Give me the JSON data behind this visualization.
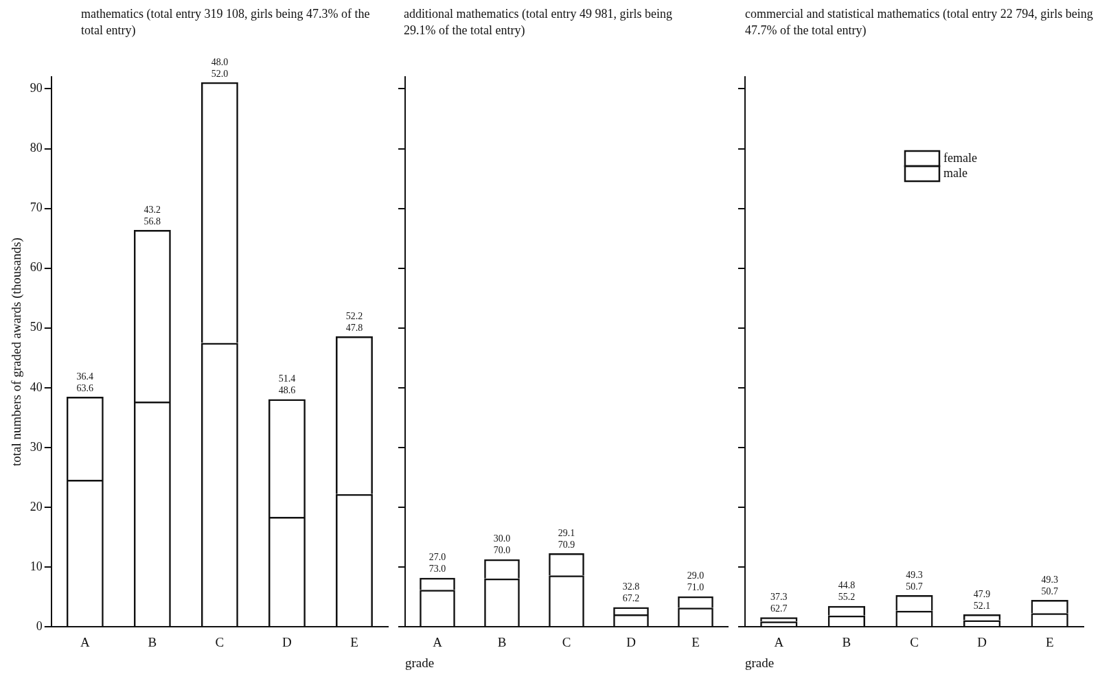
{
  "chart_data": [
    {
      "type": "bar",
      "title": "mathematics (total entry 319 108, girls being 47.3% of the total entry)",
      "ylabel": "total numbers of graded awards (thousands)",
      "categories": [
        "A",
        "B",
        "C",
        "D",
        "E"
      ],
      "stacked": true,
      "ylim": [
        0,
        92
      ],
      "yticks": [
        0,
        10,
        20,
        30,
        40,
        50,
        60,
        70,
        80,
        90
      ],
      "series": [
        {
          "color": "#111111",
          "values": [
            24.6,
            37.7,
            47.5,
            18.4,
            22.2
          ]
        },
        {
          "color": "#111111",
          "values": [
            13.9,
            28.7,
            43.6,
            19.7,
            26.4
          ]
        }
      ],
      "annotations": [
        {
          "text": "36.4",
          "x": "A",
          "y": 38.5
        },
        {
          "text": "63.6",
          "x": "A",
          "y": 38.5
        },
        {
          "text": "43.2",
          "x": "B",
          "y": 66.4
        },
        {
          "text": "56.8",
          "x": "B",
          "y": 66.4
        },
        {
          "text": "48.0",
          "x": "C",
          "y": 91.1
        },
        {
          "text": "52.0",
          "x": "C",
          "y": 91.1
        },
        {
          "text": "51.4",
          "x": "D",
          "y": 38.1
        },
        {
          "text": "48.6",
          "x": "D",
          "y": 38.1
        },
        {
          "text": "52.2",
          "x": "E",
          "y": 48.6
        },
        {
          "text": "47.8",
          "x": "E",
          "y": 48.6
        }
      ]
    },
    {
      "type": "bar",
      "title": "additional mathematics (total entry 49 981, girls being 29.1% of the total entry)",
      "xlabel": "grade",
      "categories": [
        "A",
        "B",
        "C",
        "D",
        "E"
      ],
      "stacked": true,
      "ylim": [
        0,
        92
      ],
      "yticks": [
        0,
        10,
        20,
        30,
        40,
        50,
        60,
        70,
        80,
        90
      ],
      "tick_labels": "x",
      "series": [
        {
          "color": "#111111",
          "values": [
            6.2,
            8.1,
            8.6,
            2.1,
            3.2
          ]
        },
        {
          "color": "#111111",
          "values": [
            2.0,
            3.2,
            3.7,
            1.2,
            1.9
          ]
        }
      ],
      "annotations": [
        {
          "text": "27.0",
          "x": "A",
          "y": 8.2
        },
        {
          "text": "73.0",
          "x": "A",
          "y": 8.2
        },
        {
          "text": "30.0",
          "x": "B",
          "y": 11.3
        },
        {
          "text": "70.0",
          "x": "B",
          "y": 11.3
        },
        {
          "text": "29.1",
          "x": "C",
          "y": 12.3
        },
        {
          "text": "70.9",
          "x": "C",
          "y": 12.3
        },
        {
          "text": "32.8",
          "x": "D",
          "y": 3.3
        },
        {
          "text": "67.2",
          "x": "D",
          "y": 3.3
        },
        {
          "text": "29.0",
          "x": "E",
          "y": 5.1
        },
        {
          "text": "71.0",
          "x": "E",
          "y": 5.1
        }
      ]
    },
    {
      "type": "bar",
      "title": "commercial and statistical mathematics (total entry 22 794, girls being 47.7% of the total entry)",
      "xlabel": "grade",
      "categories": [
        "A",
        "B",
        "C",
        "D",
        "E"
      ],
      "stacked": true,
      "ylim": [
        0,
        92
      ],
      "yticks": [
        0,
        10,
        20,
        30,
        40,
        50,
        60,
        70,
        80,
        90
      ],
      "tick_labels": "x",
      "legend": "top right",
      "series": [
        {
          "name": "male",
          "color": "#111111",
          "values": [
            0.9,
            1.9,
            2.7,
            1.1,
            2.3
          ]
        },
        {
          "name": "female",
          "color": "#111111",
          "values": [
            0.7,
            1.6,
            2.6,
            1.0,
            2.2
          ]
        }
      ],
      "annotations": [
        {
          "text": "37.3",
          "x": "A",
          "y": 1.6
        },
        {
          "text": "62.7",
          "x": "A",
          "y": 1.6
        },
        {
          "text": "44.8",
          "x": "B",
          "y": 3.5
        },
        {
          "text": "55.2",
          "x": "B",
          "y": 3.5
        },
        {
          "text": "49.3",
          "x": "C",
          "y": 5.3
        },
        {
          "text": "50.7",
          "x": "C",
          "y": 5.3
        },
        {
          "text": "47.9",
          "x": "D",
          "y": 2.1
        },
        {
          "text": "52.1",
          "x": "D",
          "y": 2.1
        },
        {
          "text": "49.3",
          "x": "E",
          "y": 4.5
        },
        {
          "text": "50.7",
          "x": "E",
          "y": 4.5
        }
      ]
    }
  ]
}
